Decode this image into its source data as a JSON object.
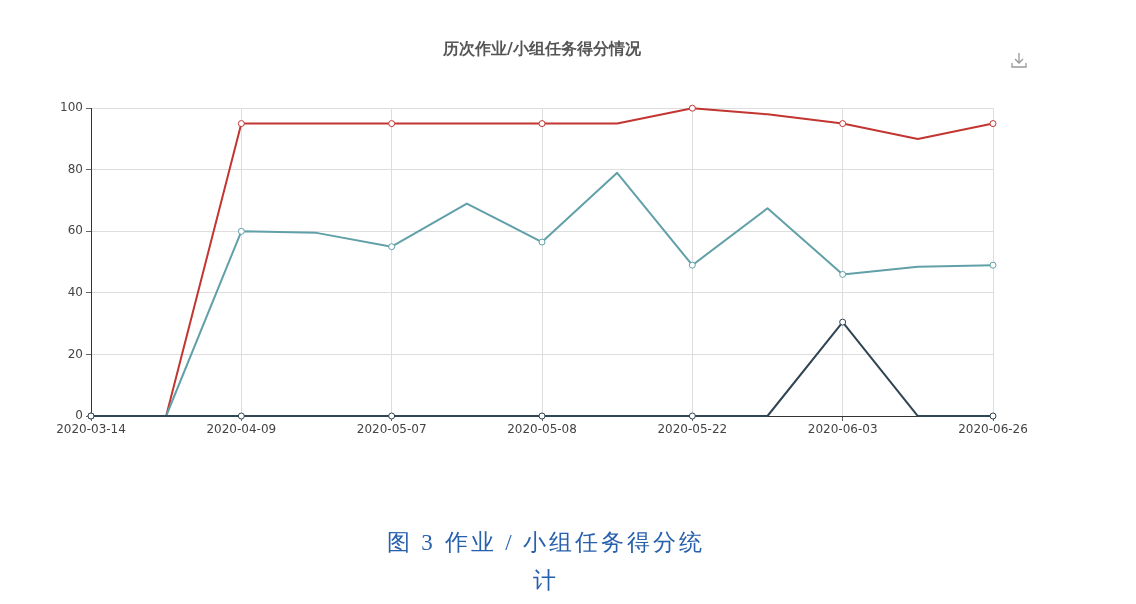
{
  "chart_data": {
    "type": "line",
    "title": "历次作业/小组任务得分情况",
    "categories": [
      "2020-03-14",
      null,
      "2020-04-09",
      null,
      "2020-05-07",
      null,
      "2020-05-08",
      null,
      "2020-05-22",
      null,
      "2020-06-03",
      null,
      "2020-06-26"
    ],
    "series": [
      {
        "color": "#c23531",
        "values": [
          0,
          0,
          95,
          95,
          95,
          95,
          95,
          95,
          100,
          98,
          95,
          90,
          95
        ]
      },
      {
        "color": "#61a0a8",
        "values": [
          0,
          0,
          60,
          59.5,
          55,
          69,
          56.5,
          79,
          49,
          67.5,
          46,
          48.5,
          49
        ]
      },
      {
        "color": "#2f4554",
        "values": [
          0,
          0,
          0,
          0,
          0,
          0,
          0,
          0,
          0,
          0,
          30.5,
          0,
          0
        ]
      }
    ],
    "ylim": [
      0,
      100
    ],
    "yticks": [
      0,
      20,
      40,
      60,
      80,
      100
    ],
    "grid": true,
    "marker": "circle",
    "annotations": [
      "图 3 作业 / 小组任务得分统计"
    ]
  }
}
